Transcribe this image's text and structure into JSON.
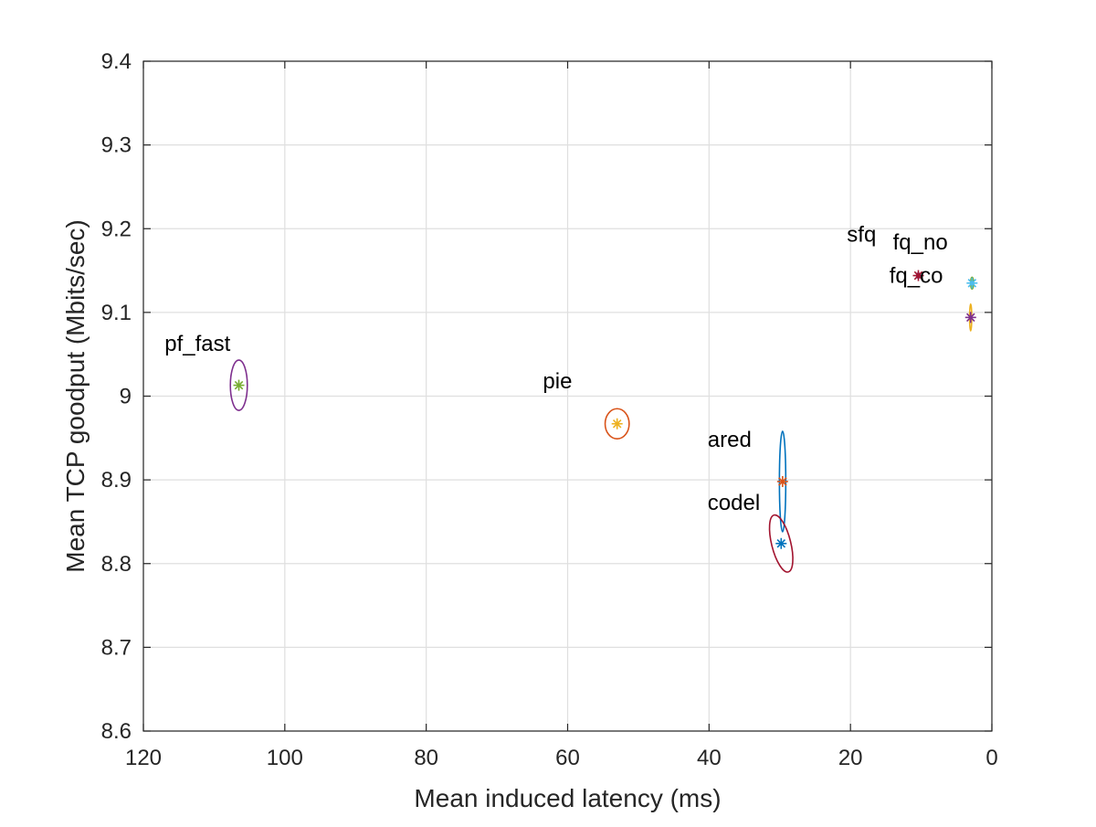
{
  "chart_data": {
    "type": "scatter",
    "title": "",
    "xlabel": "Mean induced latency (ms)",
    "ylabel": "Mean TCP goodput (Mbits/sec)",
    "xlim": [
      0,
      120
    ],
    "ylim": [
      8.6,
      9.4
    ],
    "x_reversed": true,
    "grid": true,
    "xticks": [
      120,
      100,
      80,
      60,
      40,
      20,
      0
    ],
    "yticks": [
      8.6,
      8.7,
      8.8,
      8.9,
      9.0,
      9.1,
      9.2,
      9.3,
      9.4
    ],
    "xtick_labels": [
      "120",
      "100",
      "80",
      "60",
      "40",
      "20",
      "0"
    ],
    "ytick_labels": [
      "8.6",
      "8.7",
      "8.8",
      "8.9",
      "9",
      "9.1",
      "9.2",
      "9.3",
      "9.4"
    ],
    "points": [
      {
        "label": "pf_fast",
        "x": 106.5,
        "y": 9.013,
        "marker_color": "#77AC30",
        "ellipse_color": "#7E2F8E",
        "ellipse_rx": 1.2,
        "ellipse_ry": 0.03,
        "ellipse_angle": 0
      },
      {
        "label": "pie",
        "x": 53.0,
        "y": 8.967,
        "marker_color": "#EDB120",
        "ellipse_color": "#D95319",
        "ellipse_rx": 1.7,
        "ellipse_ry": 0.018,
        "ellipse_angle": 0
      },
      {
        "label": "ared",
        "x": 29.6,
        "y": 8.898,
        "marker_color": "#D95319",
        "ellipse_color": "#0072BD",
        "ellipse_rx": 0.45,
        "ellipse_ry": 0.06,
        "ellipse_angle": 0
      },
      {
        "label": "codel",
        "x": 29.8,
        "y": 8.824,
        "marker_color": "#0072BD",
        "ellipse_color": "#A2142F",
        "ellipse_rx": 1.35,
        "ellipse_ry": 0.035,
        "ellipse_angle": -14
      },
      {
        "label": "sfq",
        "x": 10.4,
        "y": 9.144,
        "marker_color": "#A2142F",
        "ellipse_color": "#7E2F8E",
        "ellipse_rx": 0.25,
        "ellipse_ry": 0.003,
        "ellipse_angle": 0
      },
      {
        "label": "fq_no",
        "x": 2.8,
        "y": 9.135,
        "marker_color": "#4DBEEE",
        "ellipse_color": "#77AC30",
        "ellipse_rx": 0.2,
        "ellipse_ry": 0.007,
        "ellipse_angle": 0
      },
      {
        "label": "fq_co",
        "x": 3.0,
        "y": 9.094,
        "marker_color": "#7E2F8E",
        "ellipse_color": "#EDB120",
        "ellipse_rx": 0.15,
        "ellipse_ry": 0.016,
        "ellipse_angle": 0
      }
    ],
    "annotations": [
      {
        "text": "pf_fast",
        "x": 117.0,
        "y": 9.063
      },
      {
        "text": "pie",
        "x": 63.5,
        "y": 9.018
      },
      {
        "text": "ared",
        "x": 40.2,
        "y": 8.948
      },
      {
        "text": "codel",
        "x": 40.2,
        "y": 8.873
      },
      {
        "text": "sfq",
        "x": 20.5,
        "y": 9.193
      },
      {
        "text": "fq_no",
        "x": 14.0,
        "y": 9.184
      },
      {
        "text": "fq_co",
        "x": 14.5,
        "y": 9.144
      }
    ]
  }
}
